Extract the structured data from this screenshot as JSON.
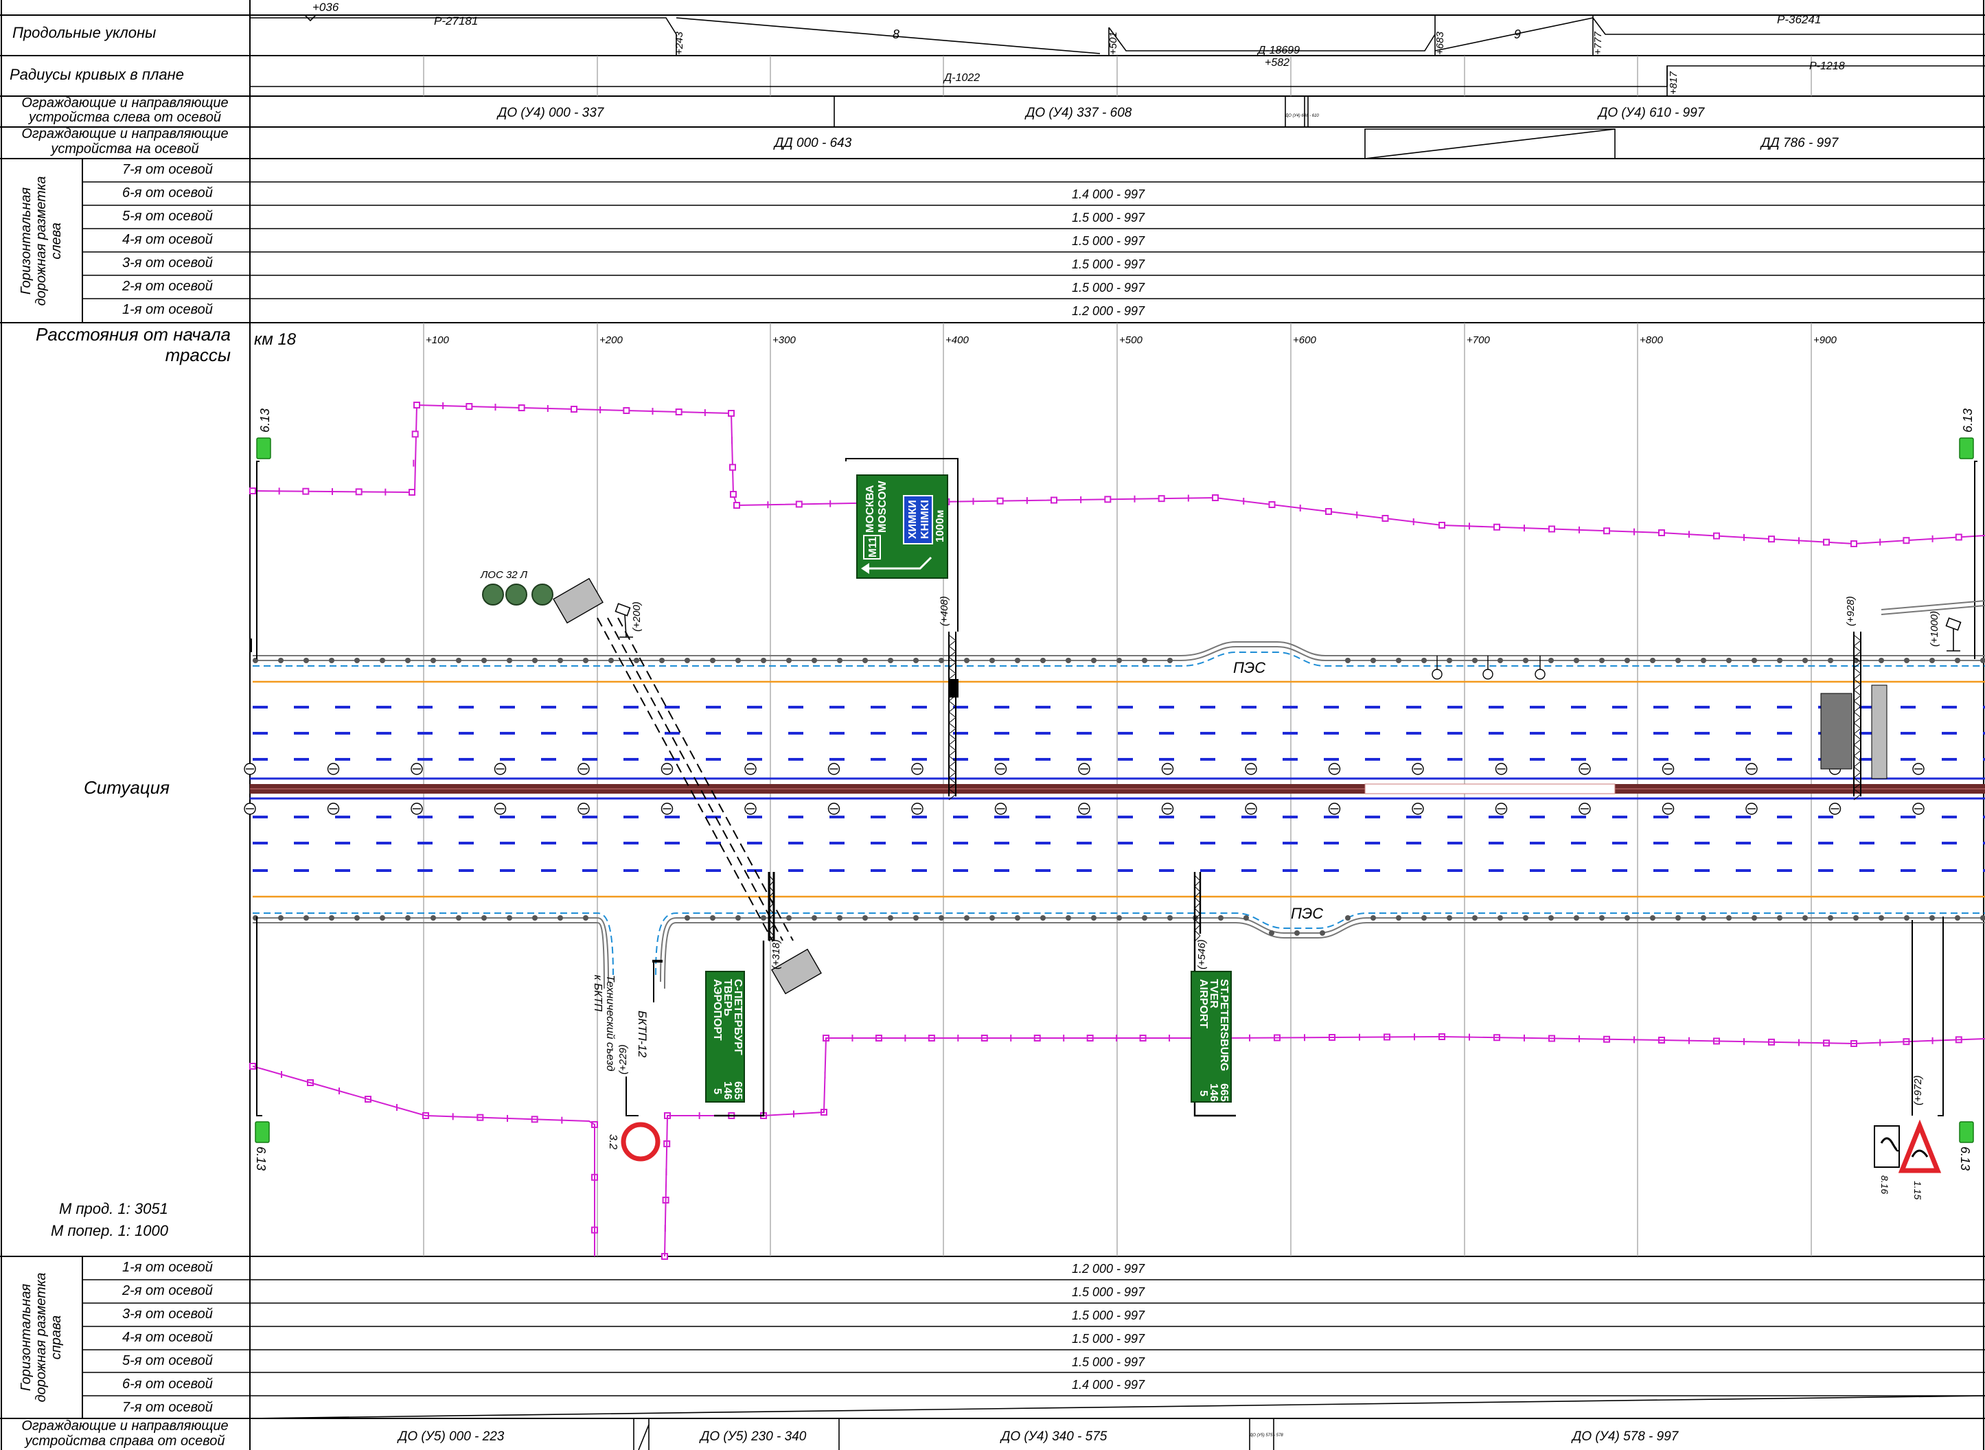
{
  "left_panel": {
    "rows": {
      "slopes": "Продольные уклоны",
      "radii": "Радиусы кривых в плане",
      "guard_left_1": "Ограждающие и направляющие",
      "guard_left_2": "устройства слева от осевой",
      "guard_axis_1": "Ограждающие и направляющие",
      "guard_axis_2": "устройства на осевой",
      "marking_left_1": "Горизонтальная",
      "marking_left_2": "дорожная разметка",
      "marking_left_3": "слева",
      "marking_right_1": "Горизонтальная",
      "marking_right_2": "дорожная разметка",
      "marking_right_3": "справа",
      "distance_1": "Расстояния от начала",
      "distance_2": "трассы",
      "situation": "Ситуация",
      "scale_long": "М прод. 1: 3051",
      "scale_cross": "М попер. 1: 1000",
      "guard_right_1": "Ограждающие и направляющие",
      "guard_right_2": "устройства справа от осевой"
    },
    "lanes_left": [
      "7-я от осевой",
      "6-я от осевой",
      "5-я от осевой",
      "4-я от осевой",
      "3-я от осевой",
      "2-я от осевой",
      "1-я от осевой"
    ],
    "lanes_right": [
      "1-я от осевой",
      "2-я от осевой",
      "3-я от осевой",
      "4-я от осевой",
      "5-я от осевой",
      "6-я от осевой",
      "7-я от осевой"
    ]
  },
  "slopes": {
    "start_mark": "+036",
    "segments": [
      "Р-27181",
      "8",
      "Д-18699",
      "9",
      "Р-36241"
    ],
    "marks": [
      "+243",
      "+501",
      "+582",
      "+683",
      "+777"
    ]
  },
  "radii": {
    "segments": [
      "Д-1022",
      "Р-1218"
    ],
    "marks": [
      "+817"
    ]
  },
  "guard_left": [
    "ДО (У4) 000 - 337",
    "ДО (У4) 337 - 608",
    "ДО (У4) 610 - 997"
  ],
  "guard_left_small": "ДО (У4) 608 - 610",
  "guard_axis": [
    "ДД 000 - 643",
    "ДД 786 - 997"
  ],
  "marking_left": [
    "",
    "1.4 000 - 997",
    "1.5 000 - 997",
    "1.5 000 - 997",
    "1.5 000 - 997",
    "1.5 000 - 997",
    "1.2 000 - 997"
  ],
  "marking_right": [
    "1.2 000 - 997",
    "1.5 000 - 997",
    "1.5 000 - 997",
    "1.5 000 - 997",
    "1.5 000 - 997",
    "1.4 000 - 997",
    ""
  ],
  "guard_right": [
    "ДО (У5) 000 - 223",
    "ДО (У5) 230 - 340",
    "ДО (У4) 340 - 575",
    "ДО (У4) 578 - 997"
  ],
  "guard_right_small": "ДО (У5) 575 - 578",
  "chainage": {
    "km": "км 18",
    "ticks": [
      "+100",
      "+200",
      "+300",
      "+400",
      "+500",
      "+600",
      "+700",
      "+800",
      "+900"
    ]
  },
  "situation": {
    "sign_6_13": "6.13",
    "pes": "ПЭС",
    "los": "ЛОС 32 Л",
    "bktp": "БКТП-12",
    "tech_exit": "Технический съезд",
    "tech_exit_2": "к БКТП",
    "sign_3_2": "3.2",
    "sign_8_16": "8.16",
    "sign_1_15": "1.15",
    "chain_labels": [
      "(+200)",
      "(+408)",
      "(+928)",
      "(+1000)",
      "(+229)",
      "(+318)",
      "(+546)",
      "(+972)"
    ],
    "sign_north": {
      "route": "M11",
      "line1": "МОСКВА",
      "line2": "MOSCOW",
      "line3": "ХИМКИ",
      "line4": "KHIMKI",
      "dist": "1000м"
    },
    "sign_south_ru": {
      "line1": "АЭРОПОРТ",
      "line2": "ТВЕРЬ",
      "line3": "С-ПЕТЕРБУРГ",
      "d1": "5",
      "d2": "146",
      "d3": "665"
    },
    "sign_south_en": {
      "line1": "AIRPORT",
      "line2": "TVER",
      "line3": "ST.PETERSBURG",
      "d1": "5",
      "d2": "146",
      "d3": "665"
    }
  },
  "colors": {
    "fence": "#d21ed2",
    "lane_mark": "#1e2ad8",
    "edge": "#f39a1e",
    "median": "#6e2a2a",
    "sign_green": "#1b7a25",
    "sign_blue": "#1a47c9"
  }
}
